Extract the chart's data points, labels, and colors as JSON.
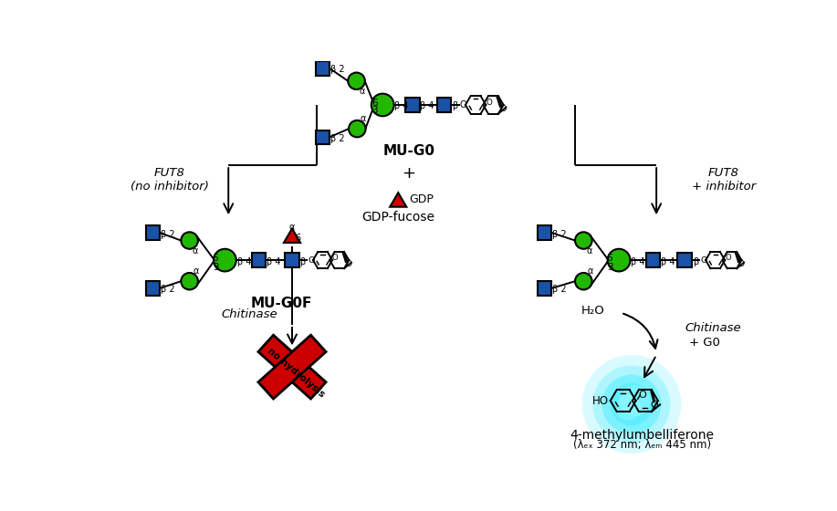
{
  "bg_color": "#ffffff",
  "blue_sq_color": "#1a52a8",
  "green_circle_color": "#22b800",
  "red_color": "#cc0000",
  "black": "#000000",
  "mu_g0_label": "MU-G0",
  "mu_g0f_label": "MU-G0F",
  "gdp_label": "GDP",
  "gdp_fucose_label": "GDP-fucose",
  "fut8_no_inh": "FUT8\n(no inhibitor)",
  "fut8_inh": "FUT8\n+ inhibitor",
  "chitinase1": "Chitinase",
  "chitinase2": "Chitinase",
  "g0_label": "G0",
  "h2o_label": "H₂O",
  "no_hydrolysis": "no hydrolysis",
  "methylumb": "4-methylumbelliferone",
  "lambda_text": "(λₑₓ 372 nm; λₑₘ 445 nm)",
  "fig_width": 9.17,
  "fig_height": 5.6,
  "sq_size": 20,
  "cr": 12
}
